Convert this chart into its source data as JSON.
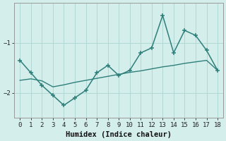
{
  "x": [
    0,
    1,
    2,
    3,
    4,
    5,
    6,
    7,
    8,
    9,
    10,
    11,
    12,
    13,
    14,
    15,
    16,
    17,
    18
  ],
  "y_main": [
    -1.35,
    -1.6,
    -1.85,
    -2.05,
    -2.25,
    -2.1,
    -1.95,
    -1.6,
    -1.45,
    -1.65,
    -1.55,
    -1.2,
    -1.1,
    -0.45,
    -1.2,
    -0.75,
    -0.85,
    -1.15,
    -1.55
  ],
  "y_trend": [
    -1.75,
    -1.72,
    -1.76,
    -1.88,
    -1.84,
    -1.79,
    -1.75,
    -1.71,
    -1.67,
    -1.63,
    -1.59,
    -1.56,
    -1.52,
    -1.48,
    -1.45,
    -1.41,
    -1.38,
    -1.35,
    -1.55
  ],
  "xlabel": "Humidex (Indice chaleur)",
  "color": "#2e7f7a",
  "bg_color": "#d4eeec",
  "grid_color": "#b0d8d5",
  "axis_color": "#999999",
  "ylim": [
    -2.5,
    -0.2
  ],
  "xlim": [
    -0.5,
    18.5
  ],
  "yticks": [
    -2,
    -1
  ],
  "xticks": [
    0,
    1,
    2,
    3,
    4,
    5,
    6,
    7,
    8,
    9,
    10,
    11,
    12,
    13,
    14,
    15,
    16,
    17,
    18
  ]
}
